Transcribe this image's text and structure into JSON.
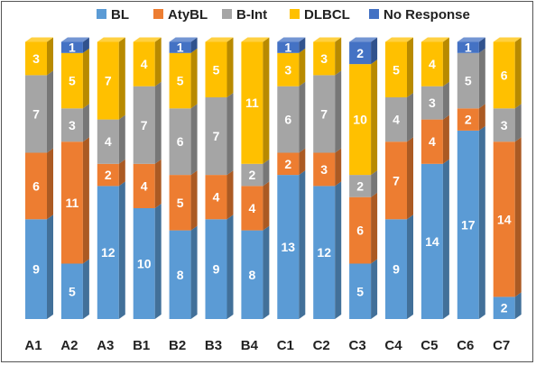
{
  "chart_data": {
    "type": "bar",
    "stacked": true,
    "categories": [
      "A1",
      "A2",
      "A3",
      "B1",
      "B2",
      "B3",
      "B4",
      "C1",
      "C2",
      "C3",
      "C4",
      "C5",
      "C6",
      "C7"
    ],
    "series": [
      {
        "name": "BL",
        "color": "#5b9bd5",
        "values": [
          9,
          5,
          12,
          10,
          8,
          9,
          8,
          13,
          12,
          5,
          9,
          14,
          17,
          2
        ]
      },
      {
        "name": "AtyBL",
        "color": "#ed7d31",
        "values": [
          6,
          11,
          2,
          4,
          5,
          4,
          4,
          2,
          3,
          6,
          7,
          4,
          2,
          14
        ]
      },
      {
        "name": "B-Int",
        "color": "#a5a5a5",
        "values": [
          7,
          3,
          4,
          7,
          6,
          7,
          2,
          6,
          7,
          2,
          4,
          3,
          5,
          3
        ]
      },
      {
        "name": "DLBCL",
        "color": "#ffc000",
        "values": [
          3,
          5,
          7,
          4,
          5,
          5,
          11,
          3,
          3,
          10,
          5,
          4,
          0,
          6
        ]
      },
      {
        "name": "No Response",
        "color": "#4472c4",
        "values": [
          0,
          1,
          0,
          0,
          1,
          0,
          0,
          1,
          0,
          2,
          0,
          0,
          1,
          0
        ]
      }
    ],
    "ylim": [
      0,
      25
    ],
    "legend_position": "top",
    "grid": false,
    "xlabel": "",
    "ylabel": ""
  }
}
